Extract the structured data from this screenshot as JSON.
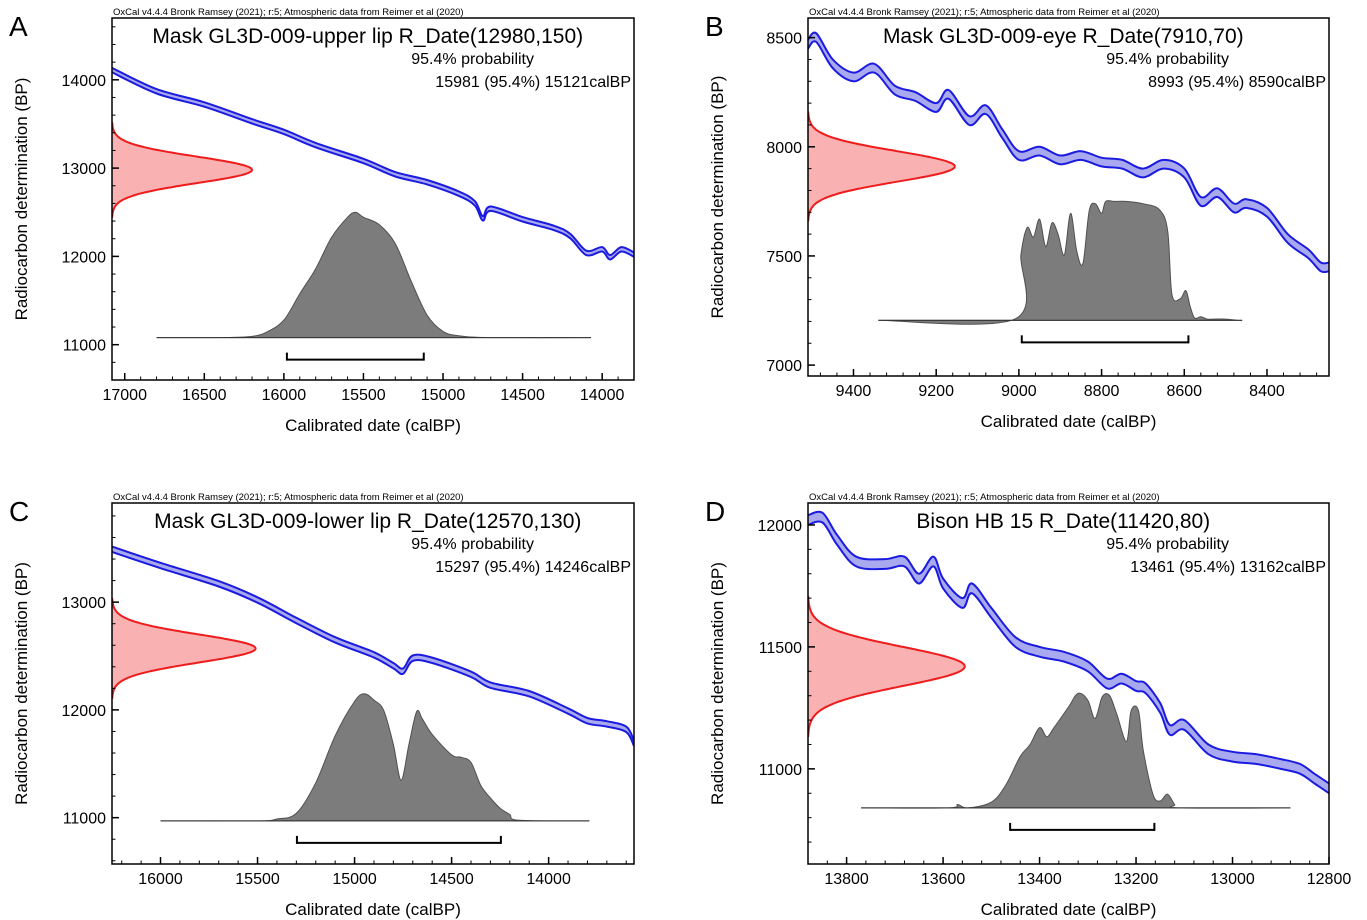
{
  "figure": {
    "colors": {
      "curve_fill": "#a9a9f0",
      "curve_stroke": "#1b1be0",
      "prior_fill": "#f9b1b1",
      "prior_stroke": "#ee1c1c",
      "posterior_fill": "#7c7c7c",
      "posterior_stroke": "#505050",
      "range_bar": "#000000",
      "axis": "#000000"
    }
  },
  "chart_data": [
    {
      "type": "area",
      "panel_label": "A",
      "credit": "OxCal v4.4.4 Bronk Ramsey (2021); r:5; Atmospheric data from Reimer et al (2020)",
      "title": "Mask GL3D-009-upper lip R_Date(12980,150)",
      "prob_label": "95.4% probability",
      "range_text": "15981 (95.4%) 15121calBP",
      "xlabel": "Calibrated date (calBP)",
      "ylabel": "Radiocarbon determination (BP)",
      "x_reversed": true,
      "xlim": [
        17080,
        13800
      ],
      "ylim": [
        10600,
        14700
      ],
      "xticks": [
        17000,
        16500,
        16000,
        15500,
        15000,
        14500,
        14000
      ],
      "yticks": [
        11000,
        12000,
        13000,
        14000
      ],
      "calibration_curve": {
        "x": [
          17080,
          16800,
          16500,
          16200,
          16000,
          15800,
          15500,
          15300,
          15100,
          14900,
          14800,
          14750,
          14700,
          14500,
          14300,
          14200,
          14100,
          14000,
          13950,
          13880,
          13800
        ],
        "y": [
          14110,
          13870,
          13720,
          13530,
          13410,
          13260,
          13080,
          12930,
          12840,
          12710,
          12600,
          12430,
          12540,
          12420,
          12320,
          12230,
          12040,
          12080,
          11990,
          12080,
          12020
        ],
        "half_width": 25
      },
      "prior": {
        "mean": 12980,
        "sigma": 150,
        "peak_x": 16200
      },
      "posterior": {
        "baseline_y": 11080,
        "peak_y": 12500,
        "x": [
          16800,
          16400,
          16200,
          16100,
          16000,
          15900,
          15800,
          15700,
          15600,
          15550,
          15500,
          15400,
          15300,
          15200,
          15100,
          15000,
          14900,
          14700,
          14070
        ],
        "density": [
          0,
          0,
          0.01,
          0.05,
          0.14,
          0.35,
          0.55,
          0.8,
          0.96,
          1.0,
          0.96,
          0.9,
          0.75,
          0.45,
          0.18,
          0.05,
          0.015,
          0,
          0
        ]
      },
      "range_bar": [
        15981,
        15121
      ]
    },
    {
      "type": "area",
      "panel_label": "B",
      "credit": "OxCal v4.4.4 Bronk Ramsey (2021); r:5; Atmospheric data from Reimer et al (2020)",
      "title": "Mask GL3D-009-eye R_Date(7910,70)",
      "prob_label": "95.4% probability",
      "range_text": "8993 (95.4%) 8590calBP",
      "xlabel": "Calibrated date (calBP)",
      "ylabel": "Radiocarbon determination (BP)",
      "x_reversed": true,
      "xlim": [
        9510,
        8250
      ],
      "ylim": [
        6950,
        8590
      ],
      "xticks": [
        9400,
        9200,
        9000,
        8800,
        8600,
        8400
      ],
      "yticks": [
        7000,
        7500,
        8000,
        8500
      ],
      "calibration_curve": {
        "x": [
          9510,
          9490,
          9450,
          9400,
          9350,
          9300,
          9250,
          9200,
          9170,
          9120,
          9080,
          9040,
          9000,
          8950,
          8900,
          8850,
          8800,
          8750,
          8700,
          8650,
          8600,
          8560,
          8520,
          8480,
          8450,
          8400,
          8350,
          8300,
          8270,
          8250
        ],
        "y": [
          8470,
          8500,
          8380,
          8320,
          8360,
          8260,
          8230,
          8180,
          8240,
          8120,
          8170,
          8060,
          7960,
          7980,
          7940,
          7960,
          7930,
          7920,
          7880,
          7920,
          7880,
          7750,
          7790,
          7720,
          7740,
          7700,
          7580,
          7510,
          7450,
          7450
        ],
        "half_width": 20
      },
      "prior": {
        "mean": 7910,
        "sigma": 70,
        "peak_x": 9155
      },
      "posterior": {
        "baseline_y": 7205,
        "peak_y": 7750,
        "x": [
          9340,
          9010,
          8995,
          8980,
          8965,
          8950,
          8935,
          8920,
          8905,
          8890,
          8875,
          8860,
          8845,
          8830,
          8815,
          8800,
          8790,
          8770,
          8740,
          8700,
          8660,
          8640,
          8630,
          8610,
          8596,
          8586,
          8575,
          8560,
          8545,
          8530,
          8500,
          8470,
          8460
        ],
        "density": [
          0,
          0.01,
          0.55,
          0.78,
          0.7,
          0.85,
          0.62,
          0.82,
          0.72,
          0.55,
          0.9,
          0.58,
          0.48,
          0.92,
          0.98,
          0.9,
          1.0,
          1.0,
          1.0,
          0.98,
          0.93,
          0.75,
          0.22,
          0.18,
          0.25,
          0.12,
          0.02,
          0.03,
          0.01,
          0.01,
          0.01,
          0,
          0
        ]
      },
      "range_bar": [
        8993,
        8590
      ]
    },
    {
      "type": "area",
      "panel_label": "C",
      "credit": "OxCal v4.4.4 Bronk Ramsey (2021); r:5; Atmospheric data from Reimer et al (2020)",
      "title": "Mask GL3D-009-lower lip R_Date(12570,130)",
      "prob_label": "95.4% probability",
      "range_text": "15297 (95.4%) 14246calBP",
      "xlabel": "Calibrated date (calBP)",
      "ylabel": "Radiocarbon determination (BP)",
      "x_reversed": true,
      "xlim": [
        16250,
        13560
      ],
      "ylim": [
        10570,
        13920
      ],
      "xticks": [
        16000,
        15500,
        15000,
        14500,
        14000
      ],
      "yticks": [
        11000,
        12000,
        13000
      ],
      "calibration_curve": {
        "x": [
          16250,
          16000,
          15700,
          15500,
          15300,
          15100,
          14900,
          14800,
          14750,
          14700,
          14600,
          14400,
          14300,
          14100,
          13900,
          13800,
          13700,
          13600,
          13560
        ],
        "y": [
          13490,
          13340,
          13170,
          13020,
          12830,
          12650,
          12510,
          12410,
          12360,
          12480,
          12460,
          12330,
          12230,
          12150,
          11990,
          11900,
          11870,
          11820,
          11690
        ],
        "half_width": 25
      },
      "prior": {
        "mean": 12570,
        "sigma": 130,
        "peak_x": 15510
      },
      "posterior": {
        "baseline_y": 10970,
        "peak_y": 12150,
        "x": [
          16000,
          15500,
          15400,
          15300,
          15200,
          15100,
          15000,
          14950,
          14900,
          14850,
          14800,
          14760,
          14720,
          14680,
          14650,
          14600,
          14500,
          14450,
          14400,
          14350,
          14300,
          14250,
          14200,
          14150,
          13790
        ],
        "density": [
          0,
          0,
          0.015,
          0.06,
          0.3,
          0.67,
          0.94,
          1.0,
          0.95,
          0.87,
          0.6,
          0.32,
          0.6,
          0.86,
          0.8,
          0.68,
          0.52,
          0.5,
          0.46,
          0.28,
          0.18,
          0.1,
          0.05,
          0.005,
          0
        ]
      },
      "range_bar": [
        15297,
        14246
      ]
    },
    {
      "type": "area",
      "panel_label": "D",
      "credit": "OxCal v4.4.4 Bronk Ramsey (2021); r:5; Atmospheric data from Reimer et al (2020)",
      "title": "Bison HB 15 R_Date(11420,80)",
      "prob_label": "95.4% probability",
      "range_text": "13461 (95.4%) 13162calBP",
      "xlabel": "Calibrated date (calBP)",
      "ylabel": "Radiocarbon determination (BP)",
      "x_reversed": true,
      "xlim": [
        13880,
        12800
      ],
      "ylim": [
        10610,
        12090
      ],
      "xticks": [
        13800,
        13600,
        13400,
        13200,
        13000,
        12800
      ],
      "yticks": [
        11000,
        11500,
        12000
      ],
      "calibration_curve": {
        "x": [
          13880,
          13850,
          13820,
          13780,
          13720,
          13680,
          13650,
          13620,
          13600,
          13560,
          13540,
          13500,
          13450,
          13400,
          13350,
          13300,
          13260,
          13230,
          13200,
          13180,
          13150,
          13130,
          13100,
          13050,
          13000,
          12950,
          12900,
          12860,
          12830,
          12800
        ],
        "y": [
          12020,
          12030,
          11940,
          11850,
          11840,
          11850,
          11780,
          11850,
          11760,
          11680,
          11740,
          11640,
          11520,
          11480,
          11460,
          11420,
          11350,
          11370,
          11340,
          11330,
          11250,
          11160,
          11180,
          11080,
          11050,
          11040,
          11020,
          11000,
          10960,
          10920
        ],
        "half_width": 20
      },
      "prior": {
        "mean": 11420,
        "sigma": 80,
        "peak_x": 13555
      },
      "posterior": {
        "baseline_y": 10840,
        "peak_y": 11310,
        "x": [
          13770,
          13590,
          13570,
          13550,
          13500,
          13470,
          13440,
          13420,
          13400,
          13385,
          13370,
          13340,
          13320,
          13300,
          13285,
          13270,
          13255,
          13240,
          13220,
          13210,
          13195,
          13185,
          13165,
          13150,
          13135,
          13120,
          13110,
          12880
        ],
        "density": [
          0,
          0,
          0.03,
          0,
          0.05,
          0.2,
          0.45,
          0.55,
          0.7,
          0.62,
          0.7,
          0.88,
          1.0,
          0.94,
          0.78,
          0.97,
          0.98,
          0.82,
          0.58,
          0.85,
          0.85,
          0.5,
          0.12,
          0.06,
          0.12,
          0.03,
          0,
          0
        ]
      },
      "range_bar": [
        13461,
        13162
      ]
    }
  ]
}
